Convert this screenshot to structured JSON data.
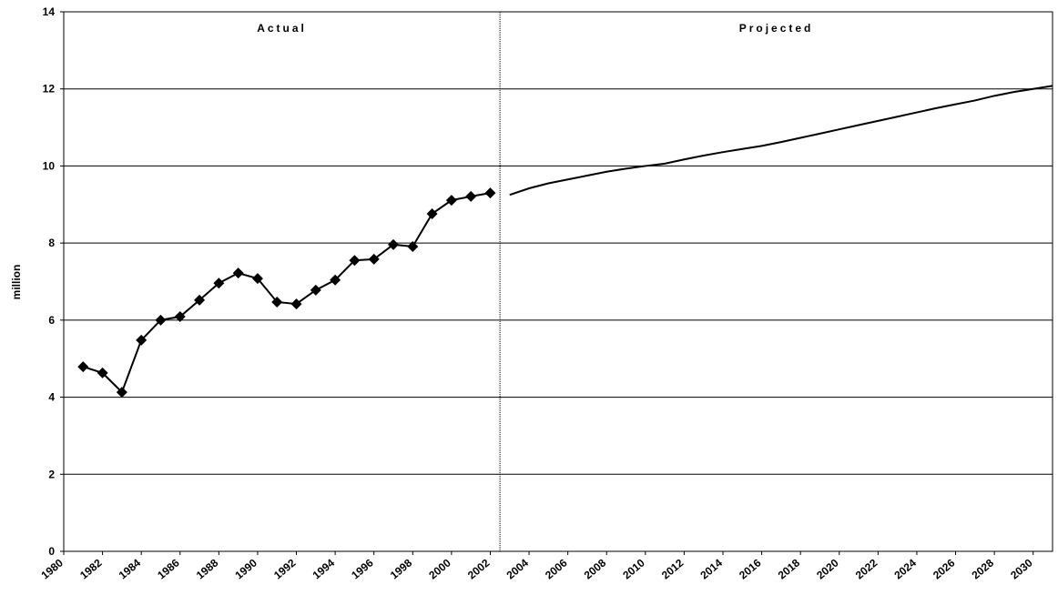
{
  "chart_data": {
    "type": "line",
    "y_label": "million",
    "annotations": [
      "Actual",
      "Projected"
    ],
    "x": [
      1981,
      1982,
      1983,
      1984,
      1985,
      1986,
      1987,
      1988,
      1989,
      1990,
      1991,
      1992,
      1993,
      1994,
      1995,
      1996,
      1997,
      1998,
      1999,
      2000,
      2001,
      2002,
      2003,
      2004,
      2005,
      2006,
      2007,
      2008,
      2009,
      2010,
      2011,
      2012,
      2013,
      2014,
      2015,
      2016,
      2017,
      2018,
      2019,
      2020,
      2021,
      2022,
      2023,
      2024,
      2025,
      2026,
      2027,
      2028,
      2029,
      2030,
      2031
    ],
    "series": [
      {
        "color": "#000000",
        "marker": "diamond",
        "values": [
          4.79,
          4.63,
          4.13,
          5.48,
          6.0,
          6.09,
          6.52,
          6.96,
          7.22,
          7.08,
          6.47,
          6.42,
          6.78,
          7.04,
          7.55,
          7.58,
          7.96,
          7.91,
          8.76,
          9.11,
          9.21,
          9.3,
          null,
          null,
          null,
          null,
          null,
          null,
          null,
          null,
          null,
          null,
          null,
          null,
          null,
          null,
          null,
          null,
          null,
          null,
          null,
          null,
          null,
          null,
          null,
          null,
          null,
          null,
          null,
          null,
          null
        ]
      },
      {
        "color": "#000000",
        "values": [
          null,
          null,
          null,
          null,
          null,
          null,
          null,
          null,
          null,
          null,
          null,
          null,
          null,
          null,
          null,
          null,
          null,
          null,
          null,
          null,
          null,
          null,
          9.25,
          9.42,
          9.55,
          9.65,
          9.75,
          9.85,
          9.93,
          10.0,
          10.06,
          10.17,
          10.27,
          10.36,
          10.44,
          10.52,
          10.62,
          10.73,
          10.84,
          10.95,
          11.06,
          11.17,
          11.28,
          11.39,
          11.5,
          11.6,
          11.7,
          11.82,
          11.92,
          12.0,
          12.08
        ]
      }
    ],
    "xlim": [
      1980,
      2031
    ],
    "xticks": [
      1980,
      1982,
      1984,
      1986,
      1988,
      1990,
      1992,
      1994,
      1996,
      1998,
      2000,
      2002,
      2004,
      2006,
      2008,
      2010,
      2012,
      2014,
      2016,
      2018,
      2020,
      2022,
      2024,
      2026,
      2028,
      2030
    ],
    "ylim": [
      0,
      14
    ],
    "yticks": [
      0,
      2,
      4,
      6,
      8,
      10,
      12,
      14
    ],
    "grid": true
  }
}
